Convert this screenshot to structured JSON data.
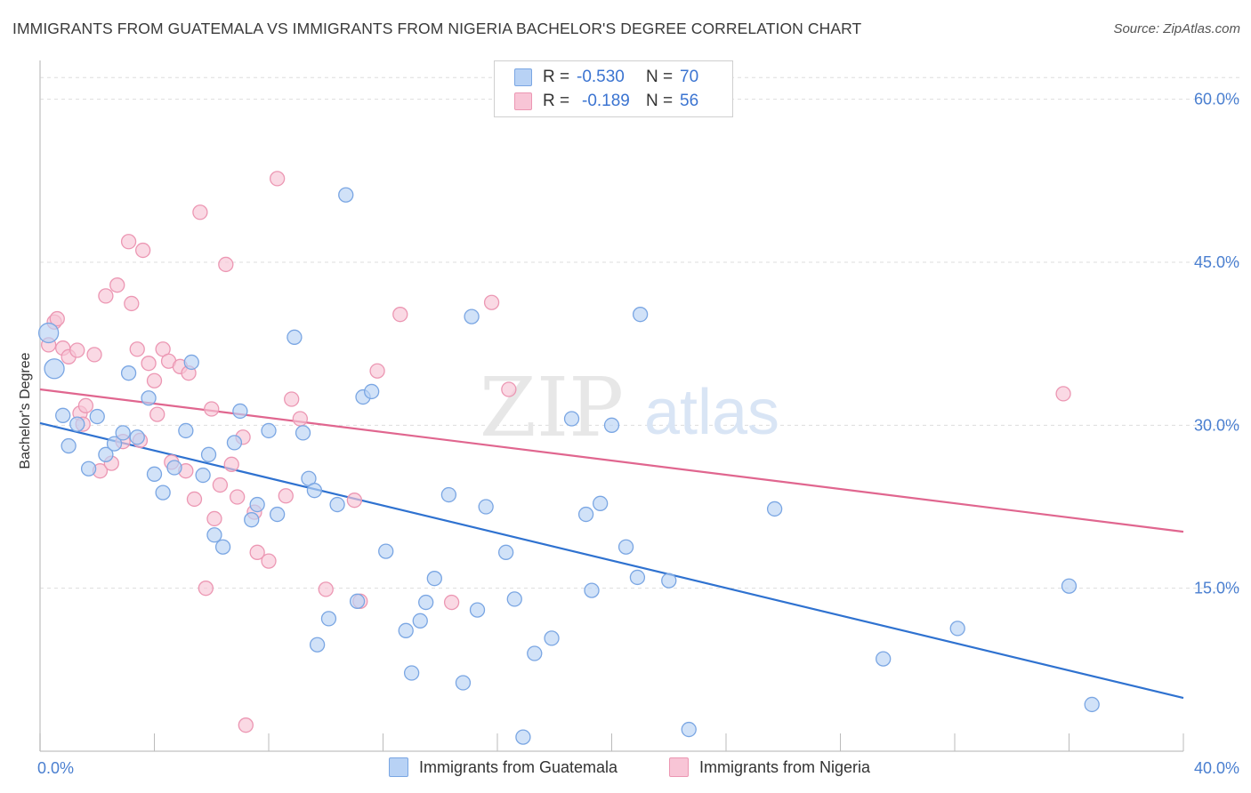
{
  "header": {
    "title": "IMMIGRANTS FROM GUATEMALA VS IMMIGRANTS FROM NIGERIA BACHELOR'S DEGREE CORRELATION CHART",
    "source": "Source: ZipAtlas.com"
  },
  "watermark": {
    "zip": "ZIP",
    "atlas": "atlas"
  },
  "legend_box": {
    "rows": [
      {
        "r_label": "R =",
        "r_value": "-0.530",
        "n_label": "N =",
        "n_value": "70"
      },
      {
        "r_label": "R =",
        "r_value": "-0.189",
        "n_label": "N =",
        "n_value": "56"
      }
    ]
  },
  "bottom_legend": {
    "guatemala": "Immigrants from Guatemala",
    "nigeria": "Immigrants from Nigeria"
  },
  "colors": {
    "guatemala_fill": "#b8d2f5",
    "guatemala_stroke": "#7aa6e3",
    "guatemala_line": "#2f72d0",
    "nigeria_fill": "#f8c5d6",
    "nigeria_stroke": "#ec97b3",
    "nigeria_line": "#e0668f",
    "tick_label": "#4a7fd0"
  },
  "chart_data": {
    "type": "scatter",
    "title": "IMMIGRANTS FROM GUATEMALA VS IMMIGRANTS FROM NIGERIA BACHELOR'S DEGREE CORRELATION CHART",
    "xlabel": "",
    "ylabel": "Bachelor's Degree",
    "xlim": [
      0,
      40
    ],
    "ylim": [
      0,
      63
    ],
    "x_tick_labels": [
      "0.0%",
      "40.0%"
    ],
    "y_ticks": [
      15,
      30,
      45,
      60
    ],
    "y_tick_labels": [
      "15.0%",
      "30.0%",
      "45.0%",
      "60.0%"
    ],
    "grid": true,
    "legend_position": "top-center",
    "series": [
      {
        "name": "Immigrants from Guatemala",
        "r": -0.53,
        "n": 70,
        "trend": {
          "x": [
            0,
            40
          ],
          "y": [
            30.2,
            4.9
          ]
        },
        "points": [
          [
            0.3,
            38.5
          ],
          [
            0.5,
            35.2
          ],
          [
            0.8,
            30.9
          ],
          [
            1.0,
            28.1
          ],
          [
            1.3,
            30.1
          ],
          [
            1.7,
            26.0
          ],
          [
            2.0,
            30.8
          ],
          [
            2.3,
            27.3
          ],
          [
            2.6,
            28.3
          ],
          [
            2.9,
            29.3
          ],
          [
            3.1,
            34.8
          ],
          [
            3.4,
            28.9
          ],
          [
            3.8,
            32.5
          ],
          [
            4.0,
            25.5
          ],
          [
            4.3,
            23.8
          ],
          [
            4.7,
            26.1
          ],
          [
            5.1,
            29.5
          ],
          [
            5.3,
            35.8
          ],
          [
            5.7,
            25.4
          ],
          [
            5.9,
            27.3
          ],
          [
            6.1,
            19.9
          ],
          [
            6.4,
            18.8
          ],
          [
            6.8,
            28.4
          ],
          [
            7.0,
            31.3
          ],
          [
            7.4,
            21.3
          ],
          [
            7.6,
            22.7
          ],
          [
            8.0,
            29.5
          ],
          [
            8.3,
            21.8
          ],
          [
            8.9,
            38.1
          ],
          [
            9.2,
            29.3
          ],
          [
            9.4,
            25.1
          ],
          [
            9.6,
            24.0
          ],
          [
            10.1,
            12.2
          ],
          [
            10.4,
            22.7
          ],
          [
            10.7,
            51.2
          ],
          [
            11.1,
            13.8
          ],
          [
            11.3,
            32.6
          ],
          [
            11.6,
            33.1
          ],
          [
            12.1,
            18.4
          ],
          [
            12.8,
            11.1
          ],
          [
            13.3,
            12.0
          ],
          [
            13.5,
            13.7
          ],
          [
            13.8,
            15.9
          ],
          [
            14.3,
            23.6
          ],
          [
            14.8,
            6.3
          ],
          [
            15.1,
            40.0
          ],
          [
            15.3,
            13.0
          ],
          [
            15.6,
            22.5
          ],
          [
            16.3,
            18.3
          ],
          [
            16.6,
            14.0
          ],
          [
            16.9,
            1.3
          ],
          [
            17.3,
            9.0
          ],
          [
            17.9,
            10.4
          ],
          [
            18.6,
            30.6
          ],
          [
            19.1,
            21.8
          ],
          [
            19.3,
            14.8
          ],
          [
            19.6,
            22.8
          ],
          [
            20.0,
            30.0
          ],
          [
            20.5,
            18.8
          ],
          [
            20.9,
            16.0
          ],
          [
            21.0,
            40.2
          ],
          [
            22.0,
            15.7
          ],
          [
            22.7,
            2.0
          ],
          [
            25.7,
            22.3
          ],
          [
            9.7,
            9.8
          ],
          [
            13.0,
            7.2
          ],
          [
            29.5,
            8.5
          ],
          [
            32.1,
            11.3
          ],
          [
            36.0,
            15.2
          ],
          [
            36.8,
            4.3
          ]
        ]
      },
      {
        "name": "Immigrants from Nigeria",
        "r": -0.189,
        "n": 56,
        "trend": {
          "x": [
            0,
            40
          ],
          "y": [
            33.3,
            20.2
          ]
        },
        "points": [
          [
            0.3,
            37.4
          ],
          [
            0.5,
            39.5
          ],
          [
            0.6,
            39.8
          ],
          [
            0.8,
            37.1
          ],
          [
            1.0,
            36.3
          ],
          [
            1.3,
            36.9
          ],
          [
            1.4,
            31.1
          ],
          [
            1.6,
            31.8
          ],
          [
            1.5,
            30.1
          ],
          [
            1.9,
            36.5
          ],
          [
            2.1,
            25.8
          ],
          [
            2.3,
            41.9
          ],
          [
            2.5,
            26.5
          ],
          [
            2.7,
            42.9
          ],
          [
            2.9,
            28.5
          ],
          [
            3.1,
            46.9
          ],
          [
            3.2,
            41.2
          ],
          [
            3.5,
            28.6
          ],
          [
            3.6,
            46.1
          ],
          [
            3.8,
            35.7
          ],
          [
            4.0,
            34.1
          ],
          [
            4.1,
            31.0
          ],
          [
            4.3,
            37.0
          ],
          [
            4.5,
            35.9
          ],
          [
            4.6,
            26.6
          ],
          [
            4.9,
            35.4
          ],
          [
            5.1,
            25.8
          ],
          [
            5.2,
            34.8
          ],
          [
            5.4,
            23.2
          ],
          [
            5.6,
            49.6
          ],
          [
            5.8,
            15.0
          ],
          [
            6.0,
            31.5
          ],
          [
            6.1,
            21.4
          ],
          [
            6.3,
            24.5
          ],
          [
            6.5,
            44.8
          ],
          [
            6.7,
            26.4
          ],
          [
            6.9,
            23.4
          ],
          [
            7.1,
            28.9
          ],
          [
            7.2,
            2.4
          ],
          [
            7.5,
            22.0
          ],
          [
            7.6,
            18.3
          ],
          [
            8.0,
            17.5
          ],
          [
            8.3,
            52.7
          ],
          [
            8.6,
            23.5
          ],
          [
            8.8,
            32.4
          ],
          [
            9.1,
            30.6
          ],
          [
            10.0,
            14.9
          ],
          [
            11.0,
            23.1
          ],
          [
            11.2,
            13.8
          ],
          [
            11.8,
            35.0
          ],
          [
            12.6,
            40.2
          ],
          [
            14.4,
            13.7
          ],
          [
            15.8,
            41.3
          ],
          [
            16.4,
            33.3
          ],
          [
            35.8,
            32.9
          ],
          [
            3.4,
            37.0
          ]
        ]
      }
    ]
  }
}
